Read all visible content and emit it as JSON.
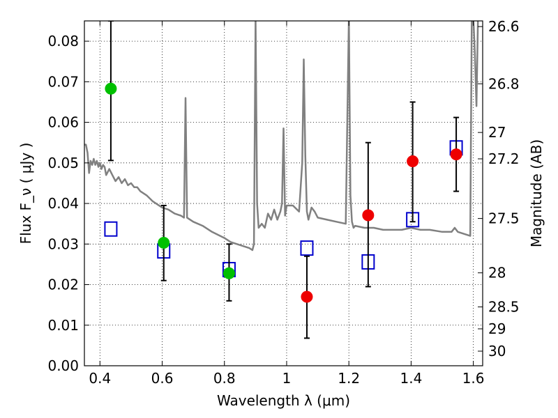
{
  "chart_data": {
    "type": "scatter",
    "title": "",
    "xlabel": "Wavelength  λ (μm)",
    "ylabel": "Flux  F_ν  ( μJy )",
    "ylabel_right": "Magnitude (AB)",
    "xlim": [
      0.35,
      1.63
    ],
    "ylim": [
      0.0,
      0.085
    ],
    "grid": true,
    "x_ticks": [
      0.4,
      0.6,
      0.8,
      1.0,
      1.2,
      1.4,
      1.6
    ],
    "x_tick_labels": [
      "0.4",
      "0.6",
      "0.8",
      "1",
      "1.2",
      "1.4",
      "1.6"
    ],
    "y_ticks": [
      0.0,
      0.01,
      0.02,
      0.03,
      0.04,
      0.05,
      0.06,
      0.07,
      0.08
    ],
    "y_tick_labels": [
      "0.00",
      "0.01",
      "0.02",
      "0.03",
      "0.04",
      "0.05",
      "0.06",
      "0.07",
      "0.08"
    ],
    "right_axis": {
      "labels": [
        "26.6",
        "26.8",
        "27",
        "27.2",
        "27.5",
        "28",
        "28.5",
        "29",
        "30"
      ],
      "positions": [
        0.0836,
        0.0695,
        0.0575,
        0.051,
        0.0363,
        0.0229,
        0.0145,
        0.0091,
        0.0036
      ]
    },
    "series": [
      {
        "marker": "line",
        "color": "#808080",
        "x": [
          0.35,
          0.355,
          0.36,
          0.365,
          0.37,
          0.375,
          0.38,
          0.385,
          0.39,
          0.395,
          0.4,
          0.405,
          0.41,
          0.415,
          0.42,
          0.43,
          0.44,
          0.45,
          0.46,
          0.47,
          0.48,
          0.49,
          0.5,
          0.51,
          0.52,
          0.53,
          0.55,
          0.57,
          0.6,
          0.62,
          0.64,
          0.66,
          0.67,
          0.675,
          0.68,
          0.69,
          0.7,
          0.73,
          0.76,
          0.8,
          0.82,
          0.84,
          0.86,
          0.88,
          0.89,
          0.895,
          0.9,
          0.905,
          0.91,
          0.92,
          0.93,
          0.94,
          0.95,
          0.96,
          0.97,
          0.98,
          0.985,
          0.99,
          0.995,
          1.0,
          1.02,
          1.04,
          1.05,
          1.055,
          1.06,
          1.065,
          1.07,
          1.08,
          1.09,
          1.1,
          1.13,
          1.16,
          1.19,
          1.2,
          1.205,
          1.21,
          1.215,
          1.22,
          1.25,
          1.28,
          1.31,
          1.34,
          1.37,
          1.4,
          1.43,
          1.46,
          1.5,
          1.53,
          1.54,
          1.55,
          1.57,
          1.59,
          1.595,
          1.6,
          1.605,
          1.61,
          1.615,
          1.62
        ],
        "y": [
          0.0545,
          0.0545,
          0.0525,
          0.0475,
          0.0505,
          0.0495,
          0.051,
          0.0495,
          0.0505,
          0.049,
          0.05,
          0.0485,
          0.0495,
          0.049,
          0.047,
          0.0485,
          0.047,
          0.0455,
          0.0465,
          0.045,
          0.046,
          0.0445,
          0.045,
          0.044,
          0.044,
          0.043,
          0.042,
          0.0405,
          0.039,
          0.0385,
          0.0375,
          0.037,
          0.0365,
          0.066,
          0.0365,
          0.036,
          0.0355,
          0.0345,
          0.033,
          0.0315,
          0.0305,
          0.03,
          0.0295,
          0.029,
          0.0285,
          0.03,
          0.086,
          0.04,
          0.034,
          0.035,
          0.034,
          0.0375,
          0.036,
          0.0385,
          0.036,
          0.038,
          0.04,
          0.0585,
          0.037,
          0.0395,
          0.0395,
          0.038,
          0.05,
          0.0755,
          0.052,
          0.038,
          0.036,
          0.039,
          0.038,
          0.0365,
          0.036,
          0.0355,
          0.035,
          0.086,
          0.042,
          0.0355,
          0.034,
          0.0345,
          0.034,
          0.034,
          0.0335,
          0.0335,
          0.0335,
          0.034,
          0.0335,
          0.0335,
          0.033,
          0.033,
          0.034,
          0.033,
          0.0325,
          0.032,
          0.086,
          0.086,
          0.077,
          0.064,
          0.086,
          0.086
        ]
      },
      {
        "marker": "open-square",
        "color": "#0000cc",
        "x": [
          0.435,
          0.605,
          0.815,
          1.065,
          1.262,
          1.405,
          1.545
        ],
        "y": [
          0.0337,
          0.0283,
          0.0237,
          0.029,
          0.0256,
          0.036,
          0.0537
        ]
      },
      {
        "marker": "circle",
        "color": "#00c000",
        "x": [
          0.435,
          0.605,
          0.815
        ],
        "y": [
          0.0683,
          0.0303,
          0.0228
        ],
        "err_low": [
          0.0506,
          0.021,
          0.016
        ],
        "err_high": [
          0.085,
          0.0395,
          0.03
        ]
      },
      {
        "marker": "circle",
        "color": "#ee0000",
        "x": [
          1.065,
          1.262,
          1.405,
          1.545
        ],
        "y": [
          0.017,
          0.0371,
          0.0504,
          0.0521
        ],
        "err_low": [
          0.0068,
          0.0195,
          0.0355,
          0.043
        ],
        "err_high": [
          0.027,
          0.055,
          0.065,
          0.0612
        ]
      }
    ]
  }
}
